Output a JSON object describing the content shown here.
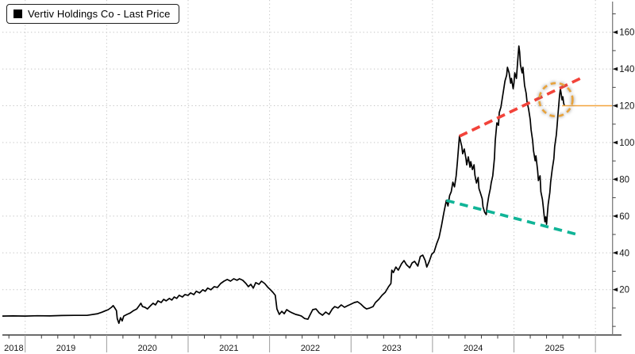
{
  "legend": {
    "label": "Vertiv Holdings Co - Last Price",
    "swatch_color": "#000000"
  },
  "colors": {
    "price_line": "#000000",
    "resistance_line": "#F2433A",
    "support_line": "#10B497",
    "highlight_circle": "#E8A33C",
    "last_price_line": "#F2A43C",
    "gridline": "#C4C4C4",
    "axis_bottom": "#3C3C3C",
    "axis_right": "#7D7D7D",
    "year_divider": "#9B9B9B",
    "tick_label": "#141414"
  },
  "chart_data": {
    "type": "line",
    "title": "Vertiv Holdings Co - Last Price",
    "grid": "dotted",
    "legend_position": "top-left",
    "x_axis": {
      "range": [
        2018.72,
        2026.21
      ],
      "year_gridlines": [
        2019,
        2020,
        2021,
        2022,
        2023,
        2024,
        2025,
        2026
      ],
      "year_labels": [
        "2018",
        "2019",
        "2020",
        "2021",
        "2022",
        "2023",
        "2024",
        "2025"
      ],
      "year_label_centers": [
        2018.86,
        2019.5,
        2020.5,
        2021.5,
        2022.5,
        2023.5,
        2024.5,
        2025.5
      ],
      "minor_ticks_per_year": 4
    },
    "y_axis": {
      "side": "right",
      "range": [
        -4.68,
        177.53
      ],
      "ticks": [
        20,
        40,
        60,
        80,
        100,
        120,
        140,
        160
      ],
      "minor_step": 10,
      "minor_min": 0,
      "minor_max": 170
    },
    "series": [
      {
        "name": "Vertiv Holdings Co - Last Price",
        "color": "#000000",
        "points": [
          [
            2018.72,
            5.6
          ],
          [
            2018.85,
            5.7
          ],
          [
            2019.0,
            5.6
          ],
          [
            2019.15,
            5.8
          ],
          [
            2019.3,
            5.7
          ],
          [
            2019.45,
            5.9
          ],
          [
            2019.6,
            6.0
          ],
          [
            2019.76,
            6.0
          ],
          [
            2019.89,
            6.9
          ],
          [
            2019.94,
            7.7
          ],
          [
            2019.99,
            8.6
          ],
          [
            2020.02,
            9.1
          ],
          [
            2020.06,
            10.4
          ],
          [
            2020.08,
            11.3
          ],
          [
            2020.1,
            10.0
          ],
          [
            2020.12,
            8.6
          ],
          [
            2020.13,
            4.3
          ],
          [
            2020.15,
            1.7
          ],
          [
            2020.17,
            4.7
          ],
          [
            2020.19,
            3.0
          ],
          [
            2020.21,
            5.6
          ],
          [
            2020.25,
            6.5
          ],
          [
            2020.29,
            7.3
          ],
          [
            2020.33,
            8.6
          ],
          [
            2020.37,
            9.5
          ],
          [
            2020.4,
            11.3
          ],
          [
            2020.42,
            12.6
          ],
          [
            2020.44,
            10.8
          ],
          [
            2020.47,
            10.4
          ],
          [
            2020.5,
            9.5
          ],
          [
            2020.54,
            11.3
          ],
          [
            2020.57,
            12.6
          ],
          [
            2020.6,
            11.7
          ],
          [
            2020.63,
            13.9
          ],
          [
            2020.67,
            13.0
          ],
          [
            2020.7,
            14.7
          ],
          [
            2020.73,
            13.9
          ],
          [
            2020.77,
            15.2
          ],
          [
            2020.8,
            14.3
          ],
          [
            2020.83,
            16.0
          ],
          [
            2020.86,
            15.2
          ],
          [
            2020.89,
            16.9
          ],
          [
            2020.93,
            16.0
          ],
          [
            2020.96,
            17.3
          ],
          [
            2021.0,
            16.9
          ],
          [
            2021.03,
            18.2
          ],
          [
            2021.07,
            17.3
          ],
          [
            2021.1,
            19.1
          ],
          [
            2021.14,
            18.2
          ],
          [
            2021.18,
            19.9
          ],
          [
            2021.21,
            19.1
          ],
          [
            2021.24,
            20.8
          ],
          [
            2021.28,
            19.9
          ],
          [
            2021.32,
            21.6
          ],
          [
            2021.36,
            21.2
          ],
          [
            2021.4,
            23.3
          ],
          [
            2021.44,
            24.6
          ],
          [
            2021.48,
            25.5
          ],
          [
            2021.52,
            24.6
          ],
          [
            2021.56,
            25.9
          ],
          [
            2021.6,
            25.1
          ],
          [
            2021.63,
            25.9
          ],
          [
            2021.67,
            25.1
          ],
          [
            2021.71,
            23.3
          ],
          [
            2021.74,
            21.6
          ],
          [
            2021.77,
            22.9
          ],
          [
            2021.8,
            20.8
          ],
          [
            2021.83,
            23.8
          ],
          [
            2021.87,
            22.9
          ],
          [
            2021.9,
            24.6
          ],
          [
            2021.94,
            23.3
          ],
          [
            2021.98,
            21.2
          ],
          [
            2022.01,
            19.9
          ],
          [
            2022.04,
            18.6
          ],
          [
            2022.07,
            16.9
          ],
          [
            2022.09,
            9.5
          ],
          [
            2022.12,
            6.5
          ],
          [
            2022.15,
            8.2
          ],
          [
            2022.18,
            6.9
          ],
          [
            2022.21,
            9.1
          ],
          [
            2022.24,
            8.2
          ],
          [
            2022.28,
            7.3
          ],
          [
            2022.32,
            6.5
          ],
          [
            2022.36,
            6.1
          ],
          [
            2022.39,
            5.6
          ],
          [
            2022.43,
            4.3
          ],
          [
            2022.47,
            3.9
          ],
          [
            2022.5,
            6.5
          ],
          [
            2022.53,
            9.1
          ],
          [
            2022.57,
            9.5
          ],
          [
            2022.61,
            7.3
          ],
          [
            2022.65,
            6.1
          ],
          [
            2022.69,
            7.8
          ],
          [
            2022.73,
            6.5
          ],
          [
            2022.77,
            9.5
          ],
          [
            2022.8,
            10.8
          ],
          [
            2022.84,
            10.0
          ],
          [
            2022.88,
            11.7
          ],
          [
            2022.92,
            10.4
          ],
          [
            2022.96,
            11.3
          ],
          [
            2023.0,
            12.1
          ],
          [
            2023.04,
            13.0
          ],
          [
            2023.08,
            13.4
          ],
          [
            2023.12,
            12.1
          ],
          [
            2023.16,
            10.4
          ],
          [
            2023.19,
            9.5
          ],
          [
            2023.23,
            10.0
          ],
          [
            2023.27,
            10.8
          ],
          [
            2023.3,
            13.0
          ],
          [
            2023.34,
            14.7
          ],
          [
            2023.38,
            16.9
          ],
          [
            2023.42,
            18.6
          ],
          [
            2023.46,
            21.6
          ],
          [
            2023.49,
            23.3
          ],
          [
            2023.5,
            30.6
          ],
          [
            2023.52,
            29.3
          ],
          [
            2023.55,
            32.3
          ],
          [
            2023.58,
            30.6
          ],
          [
            2023.62,
            34.1
          ],
          [
            2023.65,
            35.8
          ],
          [
            2023.68,
            33.6
          ],
          [
            2023.72,
            31.9
          ],
          [
            2023.75,
            34.5
          ],
          [
            2023.78,
            35.4
          ],
          [
            2023.82,
            32.8
          ],
          [
            2023.85,
            38.0
          ],
          [
            2023.88,
            38.8
          ],
          [
            2023.91,
            35.8
          ],
          [
            2023.93,
            32.3
          ],
          [
            2023.96,
            35.4
          ],
          [
            2023.99,
            39.2
          ],
          [
            2024.02,
            40.5
          ],
          [
            2024.05,
            44.8
          ],
          [
            2024.08,
            48.3
          ],
          [
            2024.11,
            54.7
          ],
          [
            2024.14,
            62.1
          ],
          [
            2024.17,
            68.5
          ],
          [
            2024.19,
            65.5
          ],
          [
            2024.21,
            71.1
          ],
          [
            2024.23,
            73.3
          ],
          [
            2024.25,
            78.4
          ],
          [
            2024.27,
            75.9
          ],
          [
            2024.29,
            81.9
          ],
          [
            2024.305,
            89.2
          ],
          [
            2024.33,
            103.4
          ],
          [
            2024.36,
            97.8
          ],
          [
            2024.37,
            93.9
          ],
          [
            2024.39,
            96.5
          ],
          [
            2024.41,
            91.4
          ],
          [
            2024.42,
            87.9
          ],
          [
            2024.44,
            92.2
          ],
          [
            2024.46,
            86.6
          ],
          [
            2024.47,
            89.6
          ],
          [
            2024.49,
            85.3
          ],
          [
            2024.51,
            87.9
          ],
          [
            2024.52,
            82.3
          ],
          [
            2024.54,
            78.0
          ],
          [
            2024.56,
            81.0
          ],
          [
            2024.57,
            75.0
          ],
          [
            2024.59,
            72.4
          ],
          [
            2024.61,
            69.4
          ],
          [
            2024.62,
            65.1
          ],
          [
            2024.64,
            62.1
          ],
          [
            2024.66,
            60.8
          ],
          [
            2024.67,
            65.1
          ],
          [
            2024.69,
            70.7
          ],
          [
            2024.71,
            75.0
          ],
          [
            2024.72,
            78.0
          ],
          [
            2024.74,
            81.9
          ],
          [
            2024.76,
            91.4
          ],
          [
            2024.77,
            100.8
          ],
          [
            2024.79,
            110.7
          ],
          [
            2024.81,
            109.4
          ],
          [
            2024.82,
            116.3
          ],
          [
            2024.84,
            119.3
          ],
          [
            2024.86,
            124.9
          ],
          [
            2024.87,
            127.9
          ],
          [
            2024.89,
            133.5
          ],
          [
            2024.91,
            136.6
          ],
          [
            2024.92,
            140.9
          ],
          [
            2024.94,
            137.9
          ],
          [
            2024.96,
            132.3
          ],
          [
            2024.97,
            134.9
          ],
          [
            2024.99,
            129.3
          ],
          [
            2025.0,
            132.3
          ],
          [
            2025.01,
            137.9
          ],
          [
            2025.03,
            134.9
          ],
          [
            2025.05,
            146.5
          ],
          [
            2025.06,
            152.5
          ],
          [
            2025.07,
            149.1
          ],
          [
            2025.08,
            142.2
          ],
          [
            2025.1,
            137.9
          ],
          [
            2025.11,
            140.9
          ],
          [
            2025.13,
            131.0
          ],
          [
            2025.15,
            126.7
          ],
          [
            2025.16,
            122.4
          ],
          [
            2025.18,
            118.1
          ],
          [
            2025.2,
            112.5
          ],
          [
            2025.21,
            106.9
          ],
          [
            2025.23,
            100.9
          ],
          [
            2025.24,
            95.7
          ],
          [
            2025.26,
            90.1
          ],
          [
            2025.27,
            92.7
          ],
          [
            2025.29,
            84.9
          ],
          [
            2025.3,
            79.3
          ],
          [
            2025.32,
            81.9
          ],
          [
            2025.33,
            73.3
          ],
          [
            2025.35,
            69.0
          ],
          [
            2025.36,
            64.7
          ],
          [
            2025.37,
            60.4
          ],
          [
            2025.38,
            56.9
          ],
          [
            2025.39,
            59.5
          ],
          [
            2025.4,
            55.6
          ],
          [
            2025.41,
            61.2
          ],
          [
            2025.42,
            66.3
          ],
          [
            2025.44,
            72.8
          ],
          [
            2025.45,
            78.4
          ],
          [
            2025.47,
            85.7
          ],
          [
            2025.49,
            91.3
          ],
          [
            2025.5,
            97.8
          ],
          [
            2025.52,
            104.2
          ],
          [
            2025.53,
            109.4
          ],
          [
            2025.54,
            115.0
          ],
          [
            2025.55,
            120.6
          ],
          [
            2025.56,
            125.8
          ],
          [
            2025.57,
            129.2
          ],
          [
            2025.58,
            126.6
          ],
          [
            2025.59,
            123.2
          ],
          [
            2025.6,
            124.9
          ],
          [
            2025.61,
            121.5
          ],
          [
            2025.62,
            120.0
          ]
        ]
      }
    ],
    "annotations": {
      "resistance_trendline": {
        "style": "dashed",
        "color": "#F2433A",
        "from": [
          2024.33,
          103.4
        ],
        "to": [
          2025.835,
          135.3
        ]
      },
      "support_trendline": {
        "style": "dashed",
        "color": "#10B497",
        "from": [
          2024.17,
          68.5
        ],
        "to": [
          2025.81,
          49.6
        ]
      },
      "breakout_circle": {
        "style": "dashed",
        "color": "#E8A33C",
        "center": [
          2025.515,
          123.3
        ],
        "rx_years": 0.205
      },
      "last_price_line": {
        "color": "#F2A43C",
        "value": 120.0,
        "from_t": 2025.59
      },
      "last_price": 120.0
    }
  }
}
